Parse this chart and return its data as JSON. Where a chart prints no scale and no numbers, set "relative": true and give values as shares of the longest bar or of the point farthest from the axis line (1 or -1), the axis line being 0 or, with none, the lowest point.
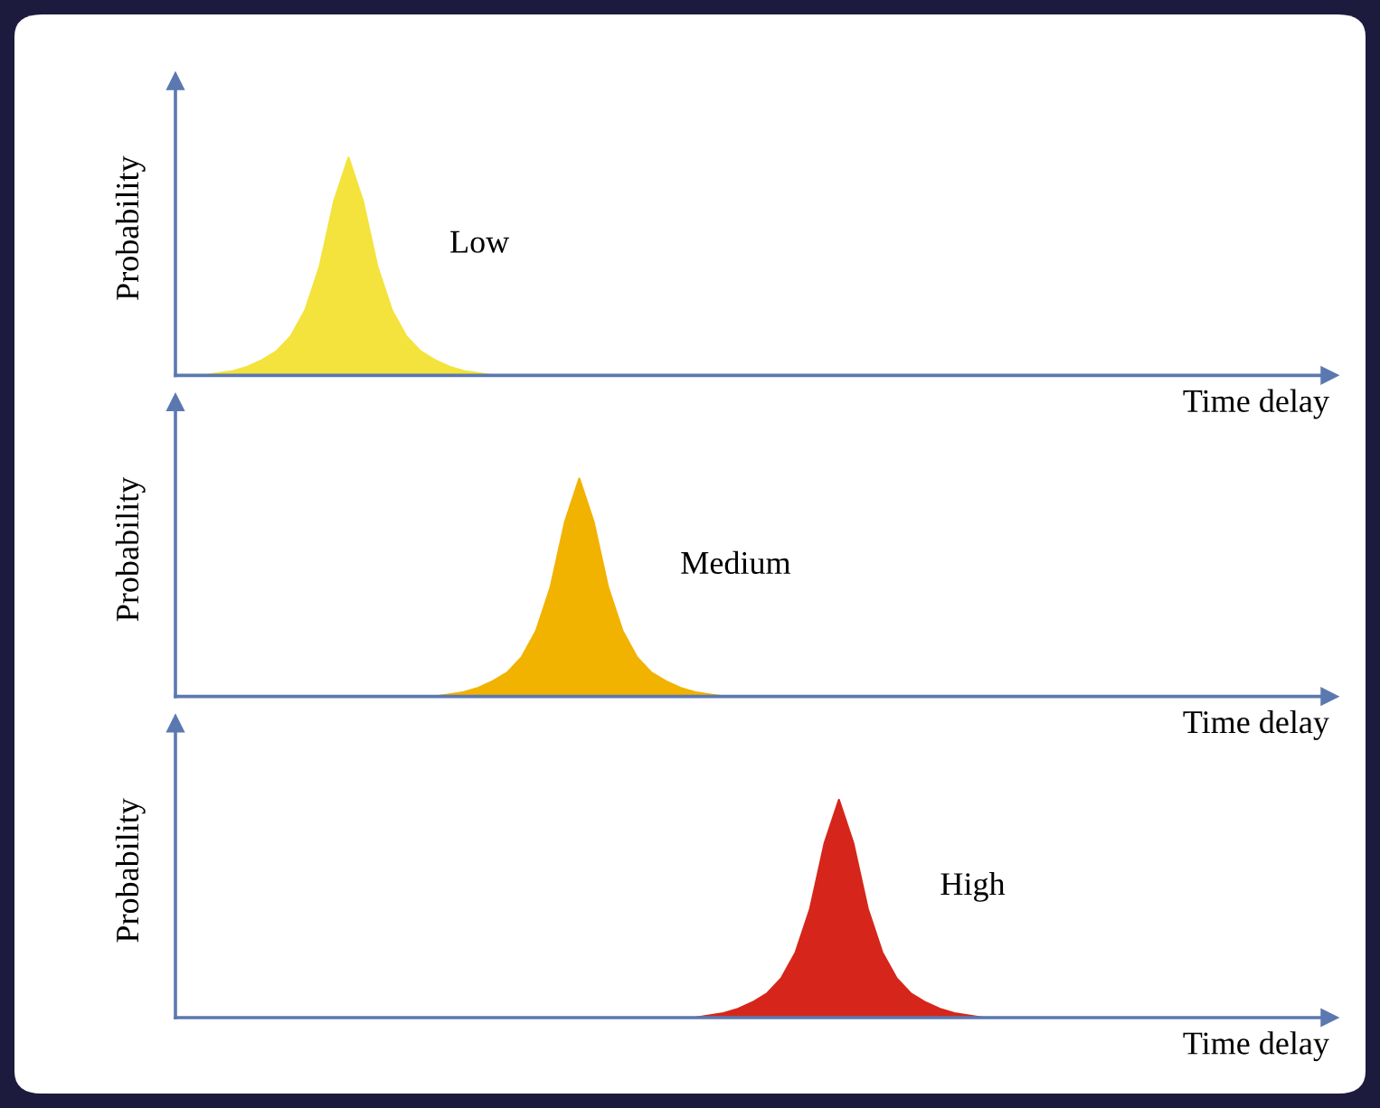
{
  "chart_data": [
    {
      "type": "area",
      "relative": true,
      "ylabel": "Probability",
      "xlabel": "Time delay",
      "annotations": [
        "Low"
      ],
      "color": "#f3e33c",
      "categories": [
        null,
        null,
        null,
        null,
        null,
        null,
        null,
        null,
        null,
        null,
        null,
        null,
        null,
        null,
        null,
        null,
        null,
        null,
        null,
        null,
        null,
        null,
        null,
        null,
        null,
        null,
        null,
        null,
        null,
        null,
        null,
        null,
        null,
        null,
        null,
        null,
        null,
        null,
        null,
        null,
        null,
        null,
        null,
        null,
        null,
        null,
        null,
        null,
        null,
        null,
        null,
        null,
        null,
        null,
        null,
        null,
        null,
        null,
        null,
        null,
        null,
        null,
        null,
        null,
        null,
        null,
        null,
        null,
        null,
        null,
        null,
        null,
        null,
        null,
        null,
        null,
        null,
        null,
        null,
        null,
        null
      ],
      "values": [
        0,
        0,
        0,
        0.01,
        0.02,
        0.04,
        0.07,
        0.11,
        0.18,
        0.3,
        0.5,
        0.8,
        1,
        0.8,
        0.5,
        0.3,
        0.18,
        0.11,
        0.07,
        0.04,
        0.02,
        0.01,
        0,
        0,
        0,
        0,
        0,
        0,
        0,
        0,
        0,
        0,
        0,
        0,
        0,
        0,
        0,
        0,
        0,
        0,
        0,
        0,
        0,
        0,
        0,
        0,
        0,
        0,
        0,
        0,
        0,
        0,
        0,
        0,
        0,
        0,
        0,
        0,
        0,
        0,
        0,
        0,
        0,
        0,
        0,
        0,
        0,
        0,
        0,
        0,
        0,
        0,
        0,
        0,
        0,
        0,
        0,
        0,
        0,
        0,
        0
      ]
    },
    {
      "type": "area",
      "relative": true,
      "ylabel": "Probability",
      "xlabel": "Time delay",
      "annotations": [
        "Medium"
      ],
      "color": "#f2b200",
      "categories": [
        null,
        null,
        null,
        null,
        null,
        null,
        null,
        null,
        null,
        null,
        null,
        null,
        null,
        null,
        null,
        null,
        null,
        null,
        null,
        null,
        null,
        null,
        null,
        null,
        null,
        null,
        null,
        null,
        null,
        null,
        null,
        null,
        null,
        null,
        null,
        null,
        null,
        null,
        null,
        null,
        null,
        null,
        null,
        null,
        null,
        null,
        null,
        null,
        null,
        null,
        null,
        null,
        null,
        null,
        null,
        null,
        null,
        null,
        null,
        null,
        null,
        null,
        null,
        null,
        null,
        null,
        null,
        null,
        null,
        null,
        null,
        null,
        null,
        null,
        null,
        null,
        null,
        null,
        null,
        null,
        null
      ],
      "values": [
        0,
        0,
        0,
        0,
        0,
        0,
        0,
        0,
        0,
        0,
        0,
        0,
        0,
        0,
        0,
        0,
        0,
        0,
        0,
        0.01,
        0.02,
        0.04,
        0.07,
        0.11,
        0.18,
        0.3,
        0.5,
        0.8,
        1,
        0.8,
        0.5,
        0.3,
        0.18,
        0.11,
        0.07,
        0.04,
        0.02,
        0.01,
        0,
        0,
        0,
        0,
        0,
        0,
        0,
        0,
        0,
        0,
        0,
        0,
        0,
        0,
        0,
        0,
        0,
        0,
        0,
        0,
        0,
        0,
        0,
        0,
        0,
        0,
        0,
        0,
        0,
        0,
        0,
        0,
        0,
        0,
        0,
        0,
        0,
        0,
        0,
        0,
        0,
        0,
        0
      ]
    },
    {
      "type": "area",
      "relative": true,
      "ylabel": "Probability",
      "xlabel": "Time delay",
      "annotations": [
        "High"
      ],
      "color": "#d6261b",
      "categories": [
        null,
        null,
        null,
        null,
        null,
        null,
        null,
        null,
        null,
        null,
        null,
        null,
        null,
        null,
        null,
        null,
        null,
        null,
        null,
        null,
        null,
        null,
        null,
        null,
        null,
        null,
        null,
        null,
        null,
        null,
        null,
        null,
        null,
        null,
        null,
        null,
        null,
        null,
        null,
        null,
        null,
        null,
        null,
        null,
        null,
        null,
        null,
        null,
        null,
        null,
        null,
        null,
        null,
        null,
        null,
        null,
        null,
        null,
        null,
        null,
        null,
        null,
        null,
        null,
        null,
        null,
        null,
        null,
        null,
        null,
        null,
        null,
        null,
        null,
        null,
        null,
        null,
        null,
        null,
        null,
        null
      ],
      "values": [
        0,
        0,
        0,
        0,
        0,
        0,
        0,
        0,
        0,
        0,
        0,
        0,
        0,
        0,
        0,
        0,
        0,
        0,
        0,
        0,
        0,
        0,
        0,
        0,
        0,
        0,
        0,
        0,
        0,
        0,
        0,
        0,
        0,
        0,
        0,
        0,
        0,
        0.01,
        0.02,
        0.04,
        0.07,
        0.11,
        0.18,
        0.3,
        0.5,
        0.8,
        1,
        0.8,
        0.5,
        0.3,
        0.18,
        0.11,
        0.07,
        0.04,
        0.02,
        0.01,
        0,
        0,
        0,
        0,
        0,
        0,
        0,
        0,
        0,
        0,
        0,
        0,
        0,
        0,
        0,
        0,
        0,
        0,
        0,
        0,
        0,
        0,
        0,
        0,
        0
      ]
    }
  ]
}
